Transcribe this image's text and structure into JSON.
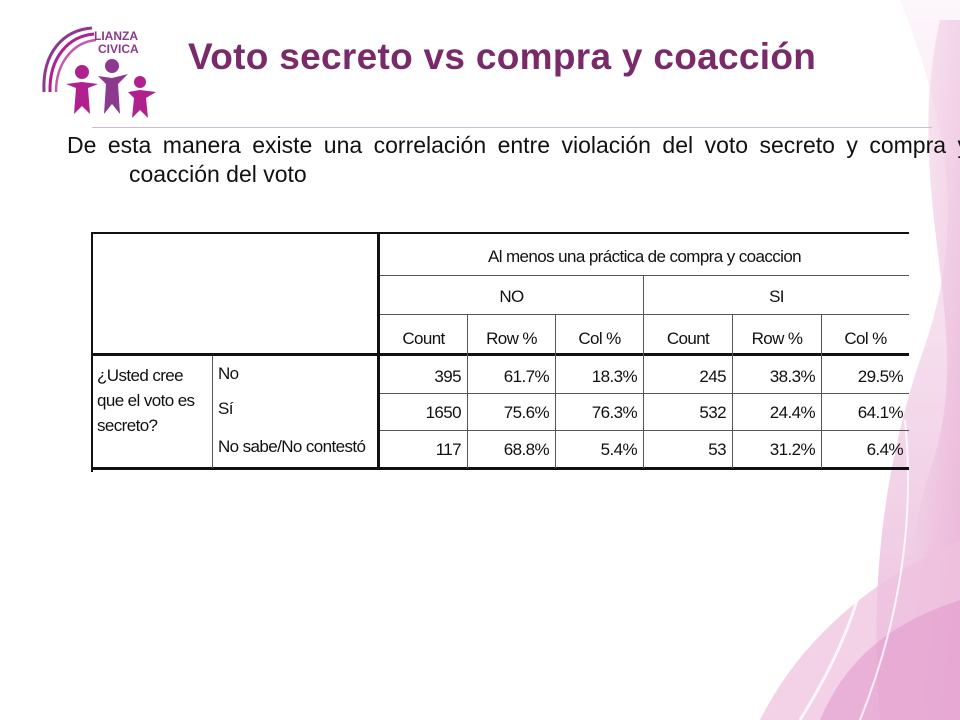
{
  "title": "Voto secreto vs compra y coacción",
  "body_text": "De esta manera existe una correlación entre violación del voto secreto y compra y coacción del voto",
  "logo": {
    "text_line1": "LIANZA",
    "text_line2": "CIVICA",
    "colors": {
      "purple": "#8b3a8f",
      "magenta": "#b0208f"
    }
  },
  "table": {
    "group_header": "Al menos una práctica de compra y coaccion",
    "groups": [
      "NO",
      "SI"
    ],
    "subheaders": [
      "Count",
      "Row %",
      "Col %",
      "Count",
      "Row %",
      "Col %"
    ],
    "row_label": "¿Usted cree que el voto es secreto?",
    "rows": [
      {
        "label": "No",
        "values": [
          "395",
          "61.7%",
          "18.3%",
          "245",
          "38.3%",
          "29.5%"
        ]
      },
      {
        "label": "Sí",
        "values": [
          "1650",
          "75.6%",
          "76.3%",
          "532",
          "24.4%",
          "64.1%"
        ]
      },
      {
        "label": "No sabe/No contestó",
        "values": [
          "117",
          "68.8%",
          "5.4%",
          "53",
          "31.2%",
          "6.4%"
        ]
      }
    ]
  },
  "colors": {
    "title": "#7a2a68",
    "accent_pink": "#d070b0"
  }
}
